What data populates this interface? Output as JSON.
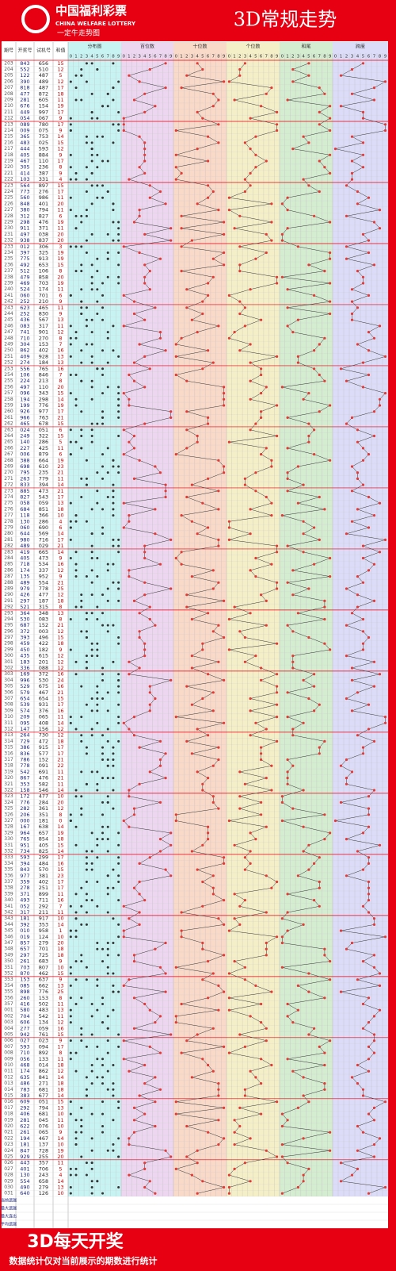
{
  "header": {
    "logo": "中国福利彩票",
    "logo_en": "CHINA WELFARE LOTTERY",
    "logo_sub": "一定牛走势图",
    "title": "3D常规走势"
  },
  "columns": [
    "期号",
    "开奖号",
    "试机号",
    "和值"
  ],
  "zones": [
    "分布图",
    "百位数",
    "十位数",
    "个位数",
    "和尾",
    "跨度"
  ],
  "digits": [
    "0",
    "1",
    "2",
    "3",
    "4",
    "5",
    "6",
    "7",
    "8",
    "9"
  ],
  "rows": [
    [
      "203",
      "843",
      "656",
      15
    ],
    [
      "204",
      "552",
      "510",
      12
    ],
    [
      "205",
      "122",
      "487",
      5
    ],
    [
      "206",
      "390",
      "489",
      12
    ],
    [
      "207",
      "818",
      "487",
      17
    ],
    [
      "208",
      "477",
      "872",
      18
    ],
    [
      "209",
      "281",
      "605",
      11
    ],
    [
      "210",
      "676",
      "154",
      19
    ],
    [
      "211",
      "449",
      "997",
      17
    ],
    [
      "212",
      "054",
      "067",
      9
    ],
    [
      "213",
      "089",
      "780",
      17
    ],
    [
      "214",
      "009",
      "075",
      9
    ],
    [
      "215",
      "365",
      "753",
      14
    ],
    [
      "216",
      "483",
      "025",
      15
    ],
    [
      "217",
      "444",
      "593",
      12
    ],
    [
      "218",
      "405",
      "884",
      9
    ],
    [
      "219",
      "467",
      "110",
      17
    ],
    [
      "220",
      "305",
      "236",
      8
    ],
    [
      "221",
      "414",
      "387",
      9
    ],
    [
      "222",
      "103",
      "331",
      4
    ],
    [
      "223",
      "564",
      "897",
      15
    ],
    [
      "224",
      "773",
      "276",
      17
    ],
    [
      "225",
      "560",
      "986",
      11
    ],
    [
      "226",
      "848",
      "401",
      20
    ],
    [
      "227",
      "380",
      "794",
      11
    ],
    [
      "228",
      "312",
      "827",
      6
    ],
    [
      "229",
      "298",
      "476",
      19
    ],
    [
      "230",
      "911",
      "371",
      11
    ],
    [
      "231",
      "497",
      "038",
      20
    ],
    [
      "232",
      "938",
      "837",
      20
    ],
    [
      "233",
      "012",
      "306",
      3
    ],
    [
      "234",
      "397",
      "325",
      19
    ],
    [
      "235",
      "775",
      "913",
      19
    ],
    [
      "236",
      "492",
      "653",
      15
    ],
    [
      "237",
      "512",
      "106",
      8
    ],
    [
      "238",
      "479",
      "858",
      20
    ],
    [
      "239",
      "469",
      "703",
      19
    ],
    [
      "240",
      "524",
      "174",
      11
    ],
    [
      "241",
      "060",
      "701",
      6
    ],
    [
      "242",
      "252",
      "210",
      9
    ],
    [
      "243",
      "623",
      "465",
      11
    ],
    [
      "244",
      "252",
      "830",
      9
    ],
    [
      "245",
      "436",
      "567",
      13
    ],
    [
      "246",
      "083",
      "317",
      11
    ],
    [
      "247",
      "741",
      "901",
      12
    ],
    [
      "248",
      "710",
      "270",
      8
    ],
    [
      "249",
      "304",
      "153",
      7
    ],
    [
      "250",
      "862",
      "402",
      16
    ],
    [
      "251",
      "409",
      "928",
      13
    ],
    [
      "252",
      "274",
      "184",
      13
    ],
    [
      "253",
      "556",
      "765",
      16
    ],
    [
      "254",
      "106",
      "846",
      7
    ],
    [
      "255",
      "224",
      "213",
      8
    ],
    [
      "256",
      "497",
      "110",
      20
    ],
    [
      "257",
      "096",
      "343",
      15
    ],
    [
      "258",
      "194",
      "298",
      14
    ],
    [
      "259",
      "199",
      "776",
      19
    ],
    [
      "260",
      "926",
      "977",
      17
    ],
    [
      "261",
      "966",
      "763",
      21
    ],
    [
      "262",
      "465",
      "678",
      15
    ],
    [
      "263",
      "024",
      "051",
      6
    ],
    [
      "264",
      "249",
      "322",
      15
    ],
    [
      "265",
      "140",
      "286",
      5
    ],
    [
      "266",
      "227",
      "425",
      11
    ],
    [
      "267",
      "006",
      "879",
      6
    ],
    [
      "268",
      "388",
      "664",
      19
    ],
    [
      "269",
      "698",
      "610",
      23
    ],
    [
      "270",
      "795",
      "235",
      21
    ],
    [
      "271",
      "263",
      "779",
      11
    ],
    [
      "272",
      "833",
      "394",
      14
    ],
    [
      "273",
      "885",
      "473",
      21
    ],
    [
      "274",
      "827",
      "543",
      17
    ],
    [
      "275",
      "058",
      "059",
      13
    ],
    [
      "276",
      "684",
      "851",
      18
    ],
    [
      "277",
      "118",
      "366",
      10
    ],
    [
      "278",
      "130",
      "286",
      4
    ],
    [
      "279",
      "060",
      "690",
      6
    ],
    [
      "280",
      "644",
      "569",
      14
    ],
    [
      "281",
      "980",
      "716",
      17
    ],
    [
      "282",
      "489",
      "029",
      21
    ],
    [
      "283",
      "419",
      "665",
      14
    ],
    [
      "284",
      "405",
      "473",
      9
    ],
    [
      "285",
      "718",
      "534",
      16
    ],
    [
      "286",
      "174",
      "337",
      12
    ],
    [
      "287",
      "135",
      "952",
      9
    ],
    [
      "288",
      "489",
      "554",
      21
    ],
    [
      "289",
      "979",
      "778",
      25
    ],
    [
      "290",
      "426",
      "477",
      12
    ],
    [
      "291",
      "297",
      "187",
      18
    ],
    [
      "292",
      "521",
      "315",
      8
    ],
    [
      "293",
      "364",
      "348",
      13
    ],
    [
      "294",
      "530",
      "083",
      8
    ],
    [
      "295",
      "687",
      "152",
      21
    ],
    [
      "296",
      "372",
      "003",
      12
    ],
    [
      "297",
      "393",
      "496",
      15
    ],
    [
      "298",
      "459",
      "422",
      18
    ],
    [
      "299",
      "450",
      "182",
      9
    ],
    [
      "300",
      "435",
      "615",
      12
    ],
    [
      "301",
      "183",
      "201",
      12
    ],
    [
      "302",
      "336",
      "088",
      12
    ],
    [
      "303",
      "169",
      "372",
      16
    ],
    [
      "304",
      "996",
      "530",
      24
    ],
    [
      "305",
      "529",
      "675",
      16
    ],
    [
      "306",
      "579",
      "467",
      21
    ],
    [
      "307",
      "654",
      "654",
      15
    ],
    [
      "308",
      "539",
      "931",
      17
    ],
    [
      "309",
      "574",
      "376",
      16
    ],
    [
      "310",
      "209",
      "065",
      11
    ],
    [
      "311",
      "095",
      "408",
      14
    ],
    [
      "312",
      "147",
      "156",
      12
    ],
    [
      "313",
      "264",
      "730",
      12
    ],
    [
      "314",
      "729",
      "472",
      18
    ],
    [
      "315",
      "386",
      "915",
      17
    ],
    [
      "316",
      "836",
      "577",
      17
    ],
    [
      "317",
      "786",
      "152",
      21
    ],
    [
      "318",
      "778",
      "091",
      22
    ],
    [
      "319",
      "542",
      "691",
      11
    ],
    [
      "320",
      "867",
      "476",
      21
    ],
    [
      "321",
      "353",
      "582",
      11
    ],
    [
      "322",
      "158",
      "546",
      14
    ],
    [
      "323",
      "172",
      "477",
      10
    ],
    [
      "324",
      "776",
      "284",
      20
    ],
    [
      "325",
      "282",
      "361",
      12
    ],
    [
      "326",
      "206",
      "351",
      8
    ],
    [
      "327",
      "000",
      "181",
      0
    ],
    [
      "328",
      "167",
      "638",
      14
    ],
    [
      "329",
      "964",
      "657",
      19
    ],
    [
      "330",
      "765",
      "854",
      18
    ],
    [
      "331",
      "951",
      "405",
      15
    ],
    [
      "332",
      "734",
      "825",
      14
    ],
    [
      "333",
      "593",
      "299",
      17
    ],
    [
      "334",
      "394",
      "484",
      16
    ],
    [
      "335",
      "843",
      "570",
      15
    ],
    [
      "336",
      "977",
      "381",
      23
    ],
    [
      "337",
      "359",
      "402",
      17
    ],
    [
      "338",
      "278",
      "251",
      17
    ],
    [
      "339",
      "371",
      "899",
      11
    ],
    [
      "340",
      "493",
      "711",
      16
    ],
    [
      "341",
      "052",
      "292",
      7
    ],
    [
      "342",
      "317",
      "211",
      11
    ],
    [
      "343",
      "181",
      "917",
      10
    ],
    [
      "344",
      "392",
      "353",
      14
    ],
    [
      "345",
      "010",
      "958",
      1
    ],
    [
      "346",
      "019",
      "124",
      10
    ],
    [
      "347",
      "857",
      "279",
      20
    ],
    [
      "348",
      "657",
      "701",
      18
    ],
    [
      "349",
      "297",
      "725",
      18
    ],
    [
      "350",
      "261",
      "683",
      9
    ],
    [
      "351",
      "703",
      "807",
      10
    ],
    [
      "352",
      "870",
      "462",
      15
    ],
    [
      "353",
      "153",
      "637",
      9
    ],
    [
      "354",
      "085",
      "662",
      13
    ],
    [
      "355",
      "898",
      "776",
      25
    ],
    [
      "356",
      "260",
      "153",
      8
    ],
    [
      "357",
      "416",
      "502",
      11
    ],
    [
      "001",
      "580",
      "483",
      13
    ],
    [
      "002",
      "704",
      "542",
      11
    ],
    [
      "003",
      "606",
      "134",
      12
    ],
    [
      "004",
      "277",
      "059",
      16
    ],
    [
      "005",
      "942",
      "761",
      15
    ],
    [
      "006",
      "027",
      "023",
      9
    ],
    [
      "007",
      "593",
      "094",
      17
    ],
    [
      "008",
      "710",
      "892",
      8
    ],
    [
      "009",
      "056",
      "133",
      11
    ],
    [
      "010",
      "468",
      "014",
      18
    ],
    [
      "011",
      "174",
      "862",
      12
    ],
    [
      "012",
      "635",
      "841",
      14
    ],
    [
      "013",
      "486",
      "271",
      18
    ],
    [
      "014",
      "783",
      "681",
      18
    ],
    [
      "015",
      "383",
      "677",
      14
    ],
    [
      "016",
      "609",
      "051",
      15
    ],
    [
      "017",
      "292",
      "794",
      13
    ],
    [
      "018",
      "406",
      "681",
      10
    ],
    [
      "019",
      "281",
      "045",
      11
    ],
    [
      "020",
      "622",
      "076",
      10
    ],
    [
      "021",
      "261",
      "065",
      9
    ],
    [
      "022",
      "194",
      "467",
      14
    ],
    [
      "023",
      "181",
      "137",
      10
    ],
    [
      "024",
      "847",
      "728",
      19
    ],
    [
      "025",
      "929",
      "255",
      20
    ],
    [
      "026",
      "443",
      "357",
      11
    ],
    [
      "027",
      "401",
      "706",
      5
    ],
    [
      "028",
      "130",
      "243",
      4
    ],
    [
      "029",
      "554",
      "658",
      14
    ],
    [
      "030",
      "490",
      "279",
      13
    ],
    [
      "031",
      "640",
      "126",
      10
    ]
  ],
  "stats": [
    "当前遗漏",
    "最大遗漏",
    "最大连出",
    "平均遗漏"
  ],
  "footer": {
    "title": "3D每天开奖",
    "note": "数据统计仅对当前展示的期数进行统计"
  }
}
